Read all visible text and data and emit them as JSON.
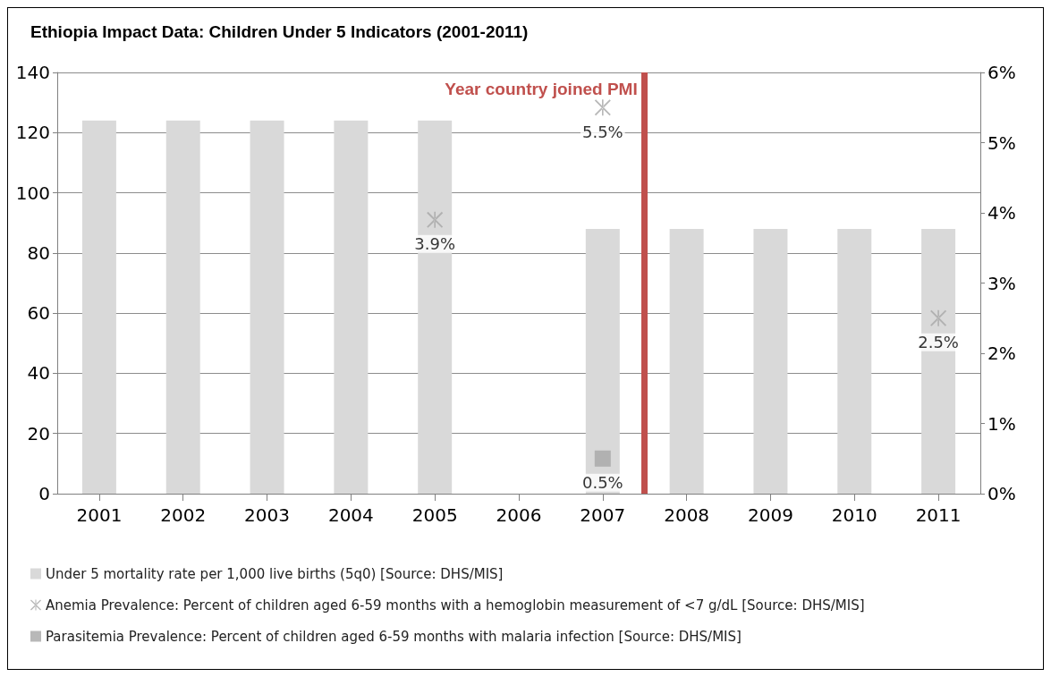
{
  "chart_data": {
    "type": "bar",
    "title": "Ethiopia Impact Data: Children Under 5 Indicators (2001-2011)",
    "x": [
      2001,
      2002,
      2003,
      2004,
      2005,
      2006,
      2007,
      2008,
      2009,
      2010,
      2011
    ],
    "xlim": [
      2000.5,
      2011.5
    ],
    "xticks": [
      2001,
      2002,
      2003,
      2004,
      2005,
      2006,
      2007,
      2008,
      2009,
      2010,
      2011
    ],
    "ylim": [
      0,
      140
    ],
    "yticks": [
      0,
      20,
      40,
      60,
      80,
      100,
      120,
      140
    ],
    "y2lim": [
      0,
      6
    ],
    "y2ticks": [
      {
        "value": 0,
        "label": "0%"
      },
      {
        "value": 1,
        "label": "1%"
      },
      {
        "value": 2,
        "label": "2%"
      },
      {
        "value": 3,
        "label": "3%"
      },
      {
        "value": 4,
        "label": "4%"
      },
      {
        "value": 5,
        "label": "5%"
      },
      {
        "value": 6,
        "label": "6%"
      }
    ],
    "series": [
      {
        "name": "Under 5 mortality rate per 1,000 live births (5q0) [Source: DHS/MIS]",
        "color": "#d9d9d9",
        "values": [
          124,
          124,
          124,
          124,
          124,
          null,
          88,
          88,
          88,
          88,
          88
        ]
      },
      {
        "name": "Anemia Prevalence: Percent of children aged 6-59 months with a hemoglobin measurement of <7 g/dL [Source: DHS/MIS]",
        "type": "scatter",
        "axis": "y2",
        "marker": "cross",
        "color": "#a6a6a6",
        "x": [
          2005,
          2007,
          2011
        ],
        "values": [
          3.9,
          5.5,
          2.5
        ],
        "value_labels": [
          "3.9%",
          "5.5%",
          "2.5%"
        ]
      },
      {
        "name": "Parasitemia Prevalence: Percent of children aged 6-59 months with malaria infection [Source: DHS/MIS]",
        "type": "scatter",
        "axis": "y2",
        "marker": "square",
        "color": "#a6a6a6",
        "x": [
          2007
        ],
        "values": [
          0.5
        ],
        "value_labels": [
          "0.5%"
        ]
      }
    ],
    "ref_lines": [
      {
        "axis": "x",
        "value": 2007.5,
        "label": "Year country joined PMI",
        "color": "#c0504d"
      }
    ],
    "grid": "y",
    "legend": "bottom left"
  }
}
